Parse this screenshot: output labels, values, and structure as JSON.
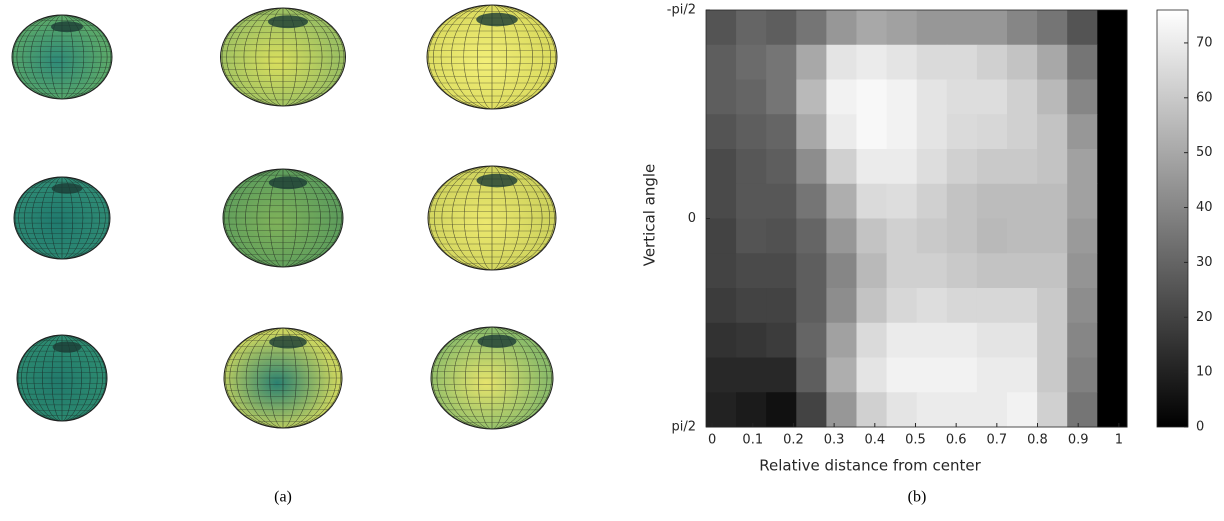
{
  "captions": [
    "(a)",
    "(b)"
  ],
  "chart_data": {
    "type": "heatmap",
    "xlabel": "Relative distance from center",
    "ylabel": "Vertical angle",
    "xlim": [
      -0.015,
      1.02
    ],
    "xticks": [
      0,
      0.1,
      0.2,
      0.3,
      0.4,
      0.5,
      0.6,
      0.7,
      0.8,
      0.9,
      1
    ],
    "ylim": [
      -1.5708,
      1.5708
    ],
    "y_reversed": true,
    "yticks": [
      {
        "value": -1.5708,
        "label": "-pi/2"
      },
      0,
      {
        "value": 1.5708,
        "label": "pi/2"
      }
    ],
    "colormap": "gray",
    "clim": [
      0,
      76
    ],
    "cticks": [
      0,
      10,
      20,
      30,
      40,
      50,
      60,
      70
    ],
    "x_bins": [
      -0.015,
      0.059,
      0.133,
      0.207,
      0.281,
      0.355,
      0.429,
      0.503,
      0.577,
      0.651,
      0.725,
      0.799,
      0.873,
      0.947,
      1.02
    ],
    "values": [
      [
        25,
        30,
        28,
        35,
        45,
        50,
        48,
        45,
        45,
        45,
        40,
        35,
        25,
        0
      ],
      [
        28,
        32,
        35,
        50,
        68,
        70,
        68,
        65,
        65,
        62,
        58,
        50,
        35,
        0
      ],
      [
        28,
        30,
        35,
        55,
        72,
        74,
        72,
        68,
        66,
        66,
        62,
        55,
        40,
        0
      ],
      [
        25,
        28,
        30,
        50,
        70,
        74,
        72,
        68,
        65,
        64,
        62,
        58,
        45,
        0
      ],
      [
        22,
        26,
        28,
        42,
        62,
        70,
        70,
        66,
        62,
        60,
        60,
        58,
        48,
        0
      ],
      [
        22,
        26,
        26,
        35,
        52,
        65,
        66,
        62,
        58,
        56,
        56,
        56,
        48,
        0
      ],
      [
        20,
        25,
        24,
        30,
        45,
        58,
        62,
        60,
        58,
        55,
        56,
        56,
        46,
        0
      ],
      [
        20,
        22,
        22,
        28,
        40,
        55,
        62,
        62,
        60,
        58,
        58,
        58,
        44,
        0
      ],
      [
        18,
        20,
        20,
        28,
        42,
        58,
        64,
        66,
        64,
        64,
        64,
        60,
        42,
        0
      ],
      [
        15,
        16,
        18,
        30,
        48,
        65,
        70,
        70,
        70,
        68,
        68,
        60,
        40,
        0
      ],
      [
        12,
        12,
        12,
        28,
        52,
        68,
        72,
        72,
        72,
        70,
        70,
        60,
        38,
        0
      ],
      [
        10,
        8,
        5,
        20,
        45,
        62,
        68,
        70,
        70,
        70,
        72,
        62,
        35,
        0
      ]
    ]
  }
}
